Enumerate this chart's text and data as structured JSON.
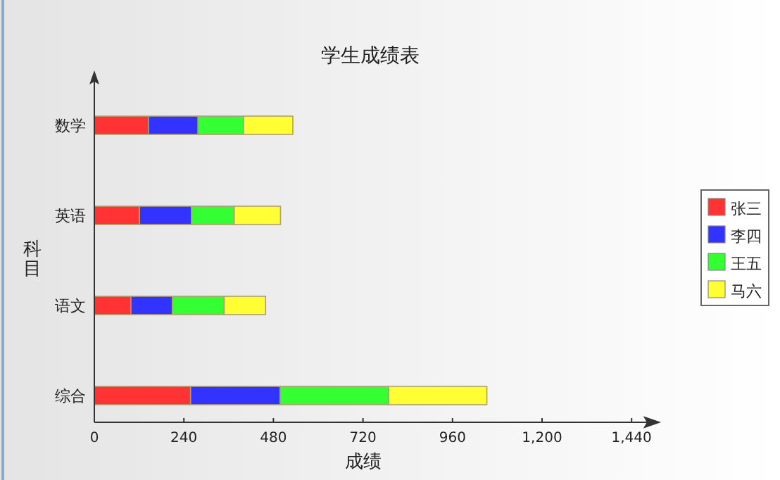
{
  "chart_data": {
    "type": "bar",
    "orientation": "horizontal",
    "stacked": true,
    "title": "学生成绩表",
    "xlabel": "成绩",
    "ylabel": "科目",
    "categories": [
      "数学",
      "英语",
      "语文",
      "综合"
    ],
    "series": [
      {
        "name": "张三",
        "color": "#ff3333",
        "values": [
          145,
          121,
          98,
          258
        ]
      },
      {
        "name": "李四",
        "color": "#3333ff",
        "values": [
          133,
          139,
          111,
          240
        ]
      },
      {
        "name": "王五",
        "color": "#33ff33",
        "values": [
          122,
          115,
          139,
          291
        ]
      },
      {
        "name": "马六",
        "color": "#ffff33",
        "values": [
          132,
          124,
          111,
          263
        ]
      }
    ],
    "xlim": [
      0,
      1440
    ],
    "xticks": [
      0,
      240,
      480,
      720,
      960,
      {
        "value": 1200,
        "label": "1,200"
      },
      {
        "value": 1440,
        "label": "1,440"
      }
    ],
    "legend": "right",
    "grid": false
  }
}
